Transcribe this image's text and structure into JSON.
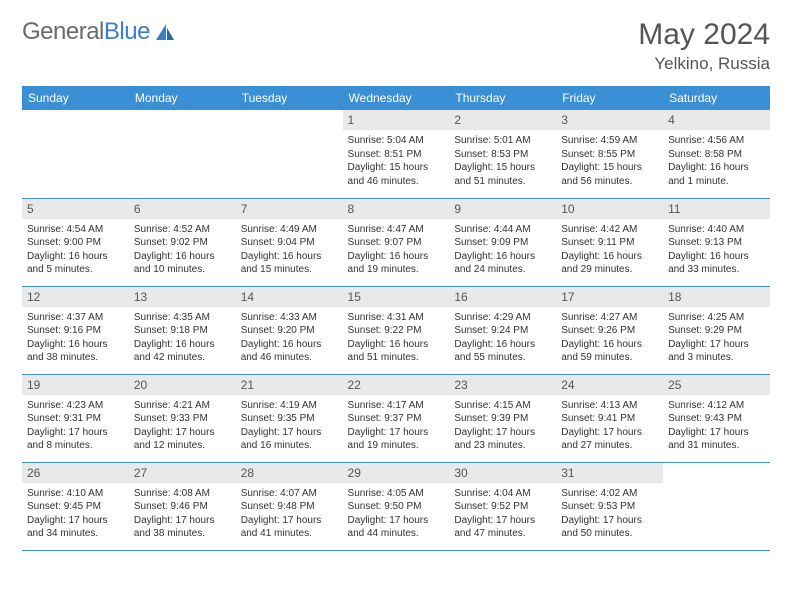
{
  "brand": {
    "part1": "General",
    "part2": "Blue"
  },
  "title": "May 2024",
  "location": "Yelkino, Russia",
  "colors": {
    "header_bg": "#3b8fd4",
    "header_text": "#ffffff",
    "daynum_bg": "#e9e9e9",
    "daynum_text": "#555555",
    "body_text": "#333333",
    "row_border": "#3b8fd4",
    "page_bg": "#ffffff",
    "logo_gray": "#6a6a6a",
    "logo_blue": "#3b7fc4"
  },
  "typography": {
    "title_fontsize": 30,
    "location_fontsize": 17,
    "header_fontsize": 12,
    "daynum_fontsize": 12,
    "cell_fontsize": 10,
    "logo_fontsize": 24
  },
  "weekdays": [
    "Sunday",
    "Monday",
    "Tuesday",
    "Wednesday",
    "Thursday",
    "Friday",
    "Saturday"
  ],
  "weeks": [
    [
      null,
      null,
      null,
      {
        "n": "1",
        "sr": "Sunrise: 5:04 AM",
        "ss": "Sunset: 8:51 PM",
        "dl": "Daylight: 15 hours and 46 minutes."
      },
      {
        "n": "2",
        "sr": "Sunrise: 5:01 AM",
        "ss": "Sunset: 8:53 PM",
        "dl": "Daylight: 15 hours and 51 minutes."
      },
      {
        "n": "3",
        "sr": "Sunrise: 4:59 AM",
        "ss": "Sunset: 8:55 PM",
        "dl": "Daylight: 15 hours and 56 minutes."
      },
      {
        "n": "4",
        "sr": "Sunrise: 4:56 AM",
        "ss": "Sunset: 8:58 PM",
        "dl": "Daylight: 16 hours and 1 minute."
      }
    ],
    [
      {
        "n": "5",
        "sr": "Sunrise: 4:54 AM",
        "ss": "Sunset: 9:00 PM",
        "dl": "Daylight: 16 hours and 5 minutes."
      },
      {
        "n": "6",
        "sr": "Sunrise: 4:52 AM",
        "ss": "Sunset: 9:02 PM",
        "dl": "Daylight: 16 hours and 10 minutes."
      },
      {
        "n": "7",
        "sr": "Sunrise: 4:49 AM",
        "ss": "Sunset: 9:04 PM",
        "dl": "Daylight: 16 hours and 15 minutes."
      },
      {
        "n": "8",
        "sr": "Sunrise: 4:47 AM",
        "ss": "Sunset: 9:07 PM",
        "dl": "Daylight: 16 hours and 19 minutes."
      },
      {
        "n": "9",
        "sr": "Sunrise: 4:44 AM",
        "ss": "Sunset: 9:09 PM",
        "dl": "Daylight: 16 hours and 24 minutes."
      },
      {
        "n": "10",
        "sr": "Sunrise: 4:42 AM",
        "ss": "Sunset: 9:11 PM",
        "dl": "Daylight: 16 hours and 29 minutes."
      },
      {
        "n": "11",
        "sr": "Sunrise: 4:40 AM",
        "ss": "Sunset: 9:13 PM",
        "dl": "Daylight: 16 hours and 33 minutes."
      }
    ],
    [
      {
        "n": "12",
        "sr": "Sunrise: 4:37 AM",
        "ss": "Sunset: 9:16 PM",
        "dl": "Daylight: 16 hours and 38 minutes."
      },
      {
        "n": "13",
        "sr": "Sunrise: 4:35 AM",
        "ss": "Sunset: 9:18 PM",
        "dl": "Daylight: 16 hours and 42 minutes."
      },
      {
        "n": "14",
        "sr": "Sunrise: 4:33 AM",
        "ss": "Sunset: 9:20 PM",
        "dl": "Daylight: 16 hours and 46 minutes."
      },
      {
        "n": "15",
        "sr": "Sunrise: 4:31 AM",
        "ss": "Sunset: 9:22 PM",
        "dl": "Daylight: 16 hours and 51 minutes."
      },
      {
        "n": "16",
        "sr": "Sunrise: 4:29 AM",
        "ss": "Sunset: 9:24 PM",
        "dl": "Daylight: 16 hours and 55 minutes."
      },
      {
        "n": "17",
        "sr": "Sunrise: 4:27 AM",
        "ss": "Sunset: 9:26 PM",
        "dl": "Daylight: 16 hours and 59 minutes."
      },
      {
        "n": "18",
        "sr": "Sunrise: 4:25 AM",
        "ss": "Sunset: 9:29 PM",
        "dl": "Daylight: 17 hours and 3 minutes."
      }
    ],
    [
      {
        "n": "19",
        "sr": "Sunrise: 4:23 AM",
        "ss": "Sunset: 9:31 PM",
        "dl": "Daylight: 17 hours and 8 minutes."
      },
      {
        "n": "20",
        "sr": "Sunrise: 4:21 AM",
        "ss": "Sunset: 9:33 PM",
        "dl": "Daylight: 17 hours and 12 minutes."
      },
      {
        "n": "21",
        "sr": "Sunrise: 4:19 AM",
        "ss": "Sunset: 9:35 PM",
        "dl": "Daylight: 17 hours and 16 minutes."
      },
      {
        "n": "22",
        "sr": "Sunrise: 4:17 AM",
        "ss": "Sunset: 9:37 PM",
        "dl": "Daylight: 17 hours and 19 minutes."
      },
      {
        "n": "23",
        "sr": "Sunrise: 4:15 AM",
        "ss": "Sunset: 9:39 PM",
        "dl": "Daylight: 17 hours and 23 minutes."
      },
      {
        "n": "24",
        "sr": "Sunrise: 4:13 AM",
        "ss": "Sunset: 9:41 PM",
        "dl": "Daylight: 17 hours and 27 minutes."
      },
      {
        "n": "25",
        "sr": "Sunrise: 4:12 AM",
        "ss": "Sunset: 9:43 PM",
        "dl": "Daylight: 17 hours and 31 minutes."
      }
    ],
    [
      {
        "n": "26",
        "sr": "Sunrise: 4:10 AM",
        "ss": "Sunset: 9:45 PM",
        "dl": "Daylight: 17 hours and 34 minutes."
      },
      {
        "n": "27",
        "sr": "Sunrise: 4:08 AM",
        "ss": "Sunset: 9:46 PM",
        "dl": "Daylight: 17 hours and 38 minutes."
      },
      {
        "n": "28",
        "sr": "Sunrise: 4:07 AM",
        "ss": "Sunset: 9:48 PM",
        "dl": "Daylight: 17 hours and 41 minutes."
      },
      {
        "n": "29",
        "sr": "Sunrise: 4:05 AM",
        "ss": "Sunset: 9:50 PM",
        "dl": "Daylight: 17 hours and 44 minutes."
      },
      {
        "n": "30",
        "sr": "Sunrise: 4:04 AM",
        "ss": "Sunset: 9:52 PM",
        "dl": "Daylight: 17 hours and 47 minutes."
      },
      {
        "n": "31",
        "sr": "Sunrise: 4:02 AM",
        "ss": "Sunset: 9:53 PM",
        "dl": "Daylight: 17 hours and 50 minutes."
      },
      null
    ]
  ]
}
